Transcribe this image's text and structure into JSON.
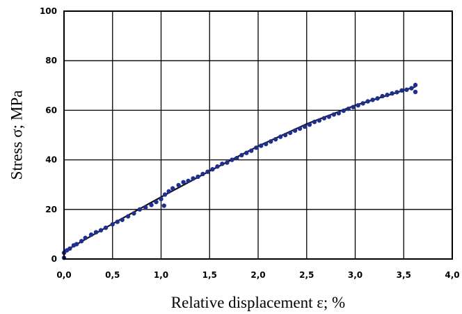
{
  "chart_data": {
    "type": "scatter",
    "title": "",
    "xlabel": "Relative displacement ε; %",
    "ylabel": "Stress σ; MPa",
    "xlim": [
      0.0,
      4.0
    ],
    "ylim": [
      0,
      100
    ],
    "x_ticks": [
      "0,0",
      "0,5",
      "1,0",
      "1,5",
      "2,0",
      "2,5",
      "3,0",
      "3,5",
      "4,0"
    ],
    "y_ticks": [
      "0",
      "20",
      "40",
      "60",
      "80",
      "100"
    ],
    "grid": true,
    "legend": "none",
    "colors": {
      "points": "#1f2f8f",
      "line": "#111111",
      "grid": "#000000"
    },
    "series": [
      {
        "values": [
          [
            0.0,
            0.5
          ],
          [
            0.0,
            2.5
          ],
          [
            0.03,
            3.5
          ],
          [
            0.06,
            4.2
          ],
          [
            0.1,
            5.5
          ],
          [
            0.13,
            6.0
          ],
          [
            0.18,
            7.2
          ],
          [
            0.22,
            8.5
          ],
          [
            0.28,
            9.8
          ],
          [
            0.33,
            10.8
          ],
          [
            0.38,
            11.6
          ],
          [
            0.43,
            12.6
          ],
          [
            0.5,
            14.0
          ],
          [
            0.55,
            15.0
          ],
          [
            0.6,
            15.8
          ],
          [
            0.66,
            17.2
          ],
          [
            0.72,
            18.4
          ],
          [
            0.78,
            20.0
          ],
          [
            0.84,
            20.8
          ],
          [
            0.9,
            21.8
          ],
          [
            0.95,
            23.0
          ],
          [
            1.0,
            24.2
          ],
          [
            1.03,
            21.5
          ],
          [
            1.04,
            26.0
          ],
          [
            1.08,
            27.3
          ],
          [
            1.12,
            28.5
          ],
          [
            1.18,
            29.8
          ],
          [
            1.23,
            31.0
          ],
          [
            1.28,
            31.5
          ],
          [
            1.33,
            32.5
          ],
          [
            1.38,
            33.2
          ],
          [
            1.43,
            34.3
          ],
          [
            1.48,
            35.2
          ],
          [
            1.53,
            36.2
          ],
          [
            1.58,
            37.3
          ],
          [
            1.63,
            38.4
          ],
          [
            1.68,
            38.9
          ],
          [
            1.73,
            40.0
          ],
          [
            1.78,
            40.7
          ],
          [
            1.83,
            41.9
          ],
          [
            1.88,
            42.8
          ],
          [
            1.93,
            43.7
          ],
          [
            1.98,
            44.9
          ],
          [
            2.03,
            45.7
          ],
          [
            2.08,
            46.4
          ],
          [
            2.13,
            47.4
          ],
          [
            2.18,
            48.3
          ],
          [
            2.23,
            49.3
          ],
          [
            2.28,
            50.0
          ],
          [
            2.33,
            50.9
          ],
          [
            2.38,
            51.8
          ],
          [
            2.43,
            52.6
          ],
          [
            2.48,
            53.4
          ],
          [
            2.53,
            54.2
          ],
          [
            2.58,
            55.3
          ],
          [
            2.63,
            55.9
          ],
          [
            2.68,
            56.8
          ],
          [
            2.73,
            57.4
          ],
          [
            2.78,
            58.3
          ],
          [
            2.83,
            58.8
          ],
          [
            2.88,
            59.8
          ],
          [
            2.93,
            60.6
          ],
          [
            2.98,
            61.3
          ],
          [
            3.03,
            62.0
          ],
          [
            3.08,
            62.8
          ],
          [
            3.13,
            63.6
          ],
          [
            3.18,
            64.2
          ],
          [
            3.23,
            64.8
          ],
          [
            3.28,
            65.7
          ],
          [
            3.33,
            66.2
          ],
          [
            3.38,
            66.8
          ],
          [
            3.43,
            67.3
          ],
          [
            3.48,
            68.0
          ],
          [
            3.53,
            68.3
          ],
          [
            3.58,
            68.9
          ],
          [
            3.62,
            70.2
          ],
          [
            3.62,
            67.4
          ]
        ]
      },
      {
        "values": [
          [
            0.0,
            3.0
          ],
          [
            0.5,
            14.2
          ],
          [
            1.0,
            25.0
          ],
          [
            1.5,
            35.5
          ],
          [
            2.0,
            45.5
          ],
          [
            2.5,
            54.5
          ],
          [
            3.0,
            62.0
          ],
          [
            3.62,
            69.5
          ]
        ]
      }
    ]
  }
}
